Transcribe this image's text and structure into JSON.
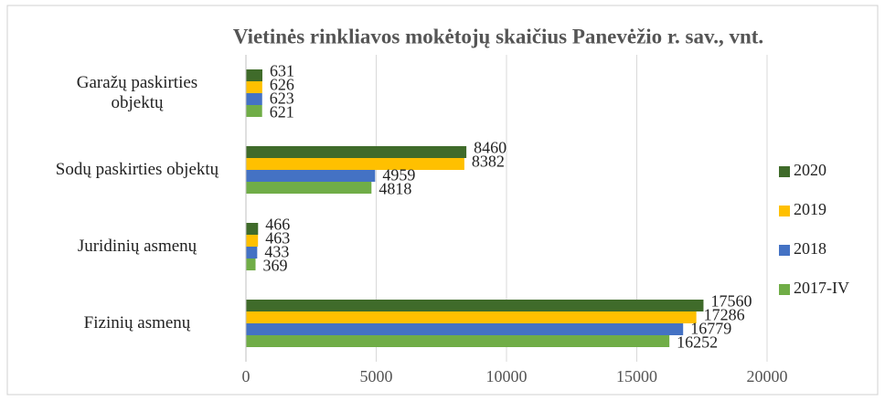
{
  "chart_data": {
    "type": "bar",
    "orientation": "horizontal",
    "title": "Vietinės rinkliavos mokėtojų skaičius Panevėžio r. sav., vnt.",
    "categories": [
      "Garažų paskirties objektų",
      "Sodų paskirties objektų",
      "Juridinių asmenų",
      "Fizinių asmenų"
    ],
    "series": [
      {
        "name": "2020",
        "color": "#3f6b2a",
        "values": [
          631,
          8460,
          466,
          17560
        ]
      },
      {
        "name": "2019",
        "color": "#ffc000",
        "values": [
          626,
          8382,
          463,
          17286
        ]
      },
      {
        "name": "2018",
        "color": "#4472c4",
        "values": [
          623,
          4959,
          433,
          16779
        ]
      },
      {
        "name": "2017-IV",
        "color": "#70ad47",
        "values": [
          621,
          4818,
          369,
          16252
        ]
      }
    ],
    "xlim": [
      0,
      20000
    ],
    "xticks": [
      0,
      5000,
      10000,
      15000,
      20000
    ],
    "grid": true,
    "legend": "right"
  }
}
